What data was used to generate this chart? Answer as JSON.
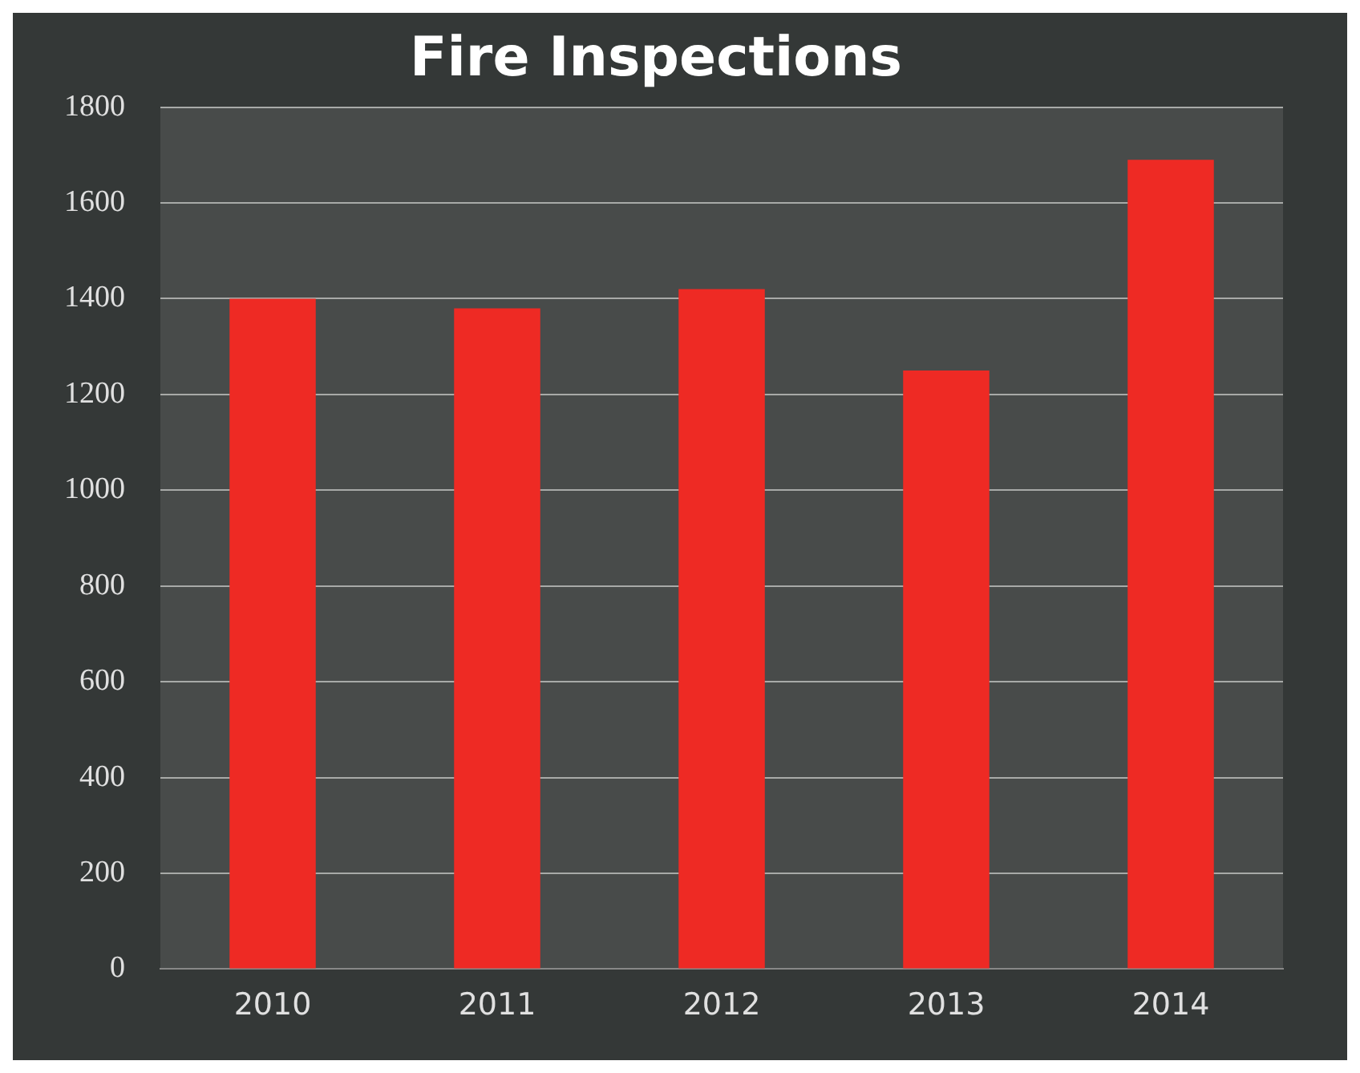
{
  "chart_data": {
    "type": "bar",
    "title": "Fire Inspections",
    "categories": [
      "2010",
      "2011",
      "2012",
      "2013",
      "2014"
    ],
    "values": [
      1400,
      1380,
      1420,
      1250,
      1690
    ],
    "color": "#ee2a24",
    "ylim": [
      0,
      1800
    ],
    "yticks": [
      0,
      200,
      400,
      600,
      800,
      1000,
      1200,
      1400,
      1600,
      1800
    ],
    "grid": "y",
    "legend": false
  }
}
